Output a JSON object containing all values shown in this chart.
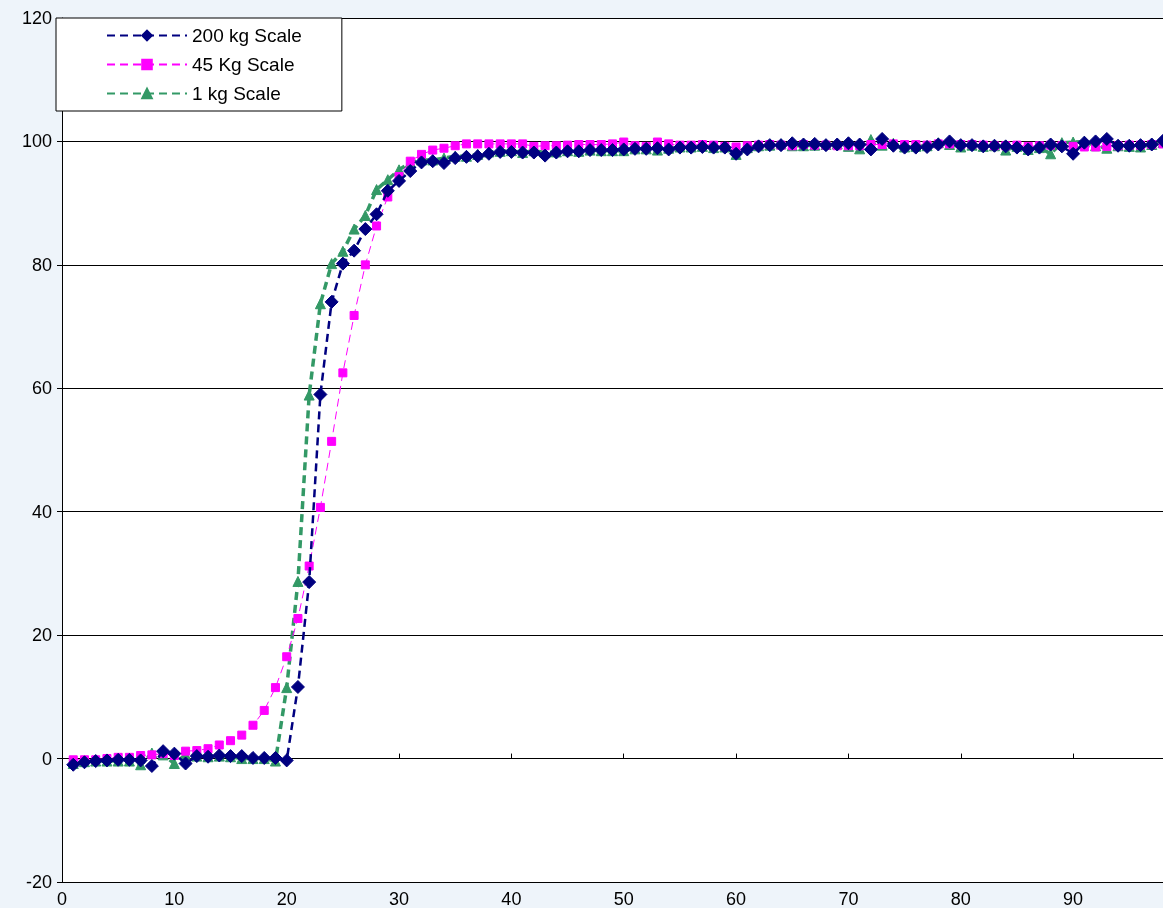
{
  "chart_data": {
    "type": "line",
    "x": [
      1,
      2,
      3,
      4,
      5,
      6,
      7,
      8,
      9,
      10,
      11,
      12,
      13,
      14,
      15,
      16,
      17,
      18,
      19,
      20,
      21,
      22,
      23,
      24,
      25,
      26,
      27,
      28,
      29,
      30,
      31,
      32,
      33,
      34,
      35,
      36,
      37,
      38,
      39,
      40,
      41,
      42,
      43,
      44,
      45,
      46,
      47,
      48,
      49,
      50,
      51,
      52,
      53,
      54,
      55,
      56,
      57,
      58,
      59,
      60,
      61,
      62,
      63,
      64,
      65,
      66,
      67,
      68,
      69,
      70,
      71,
      72,
      73,
      74,
      75,
      76,
      77,
      78,
      79,
      80,
      81,
      82,
      83,
      84,
      85,
      86,
      87,
      88,
      89,
      90,
      91,
      92,
      93,
      94,
      95,
      96,
      97,
      98
    ],
    "series": [
      {
        "name": "200 kg Scale",
        "color": "#000080",
        "marker": "diamond",
        "line_style": "dashed",
        "values": [
          -1,
          -0.6,
          -0.4,
          -0.3,
          -0.2,
          -0.2,
          -0.3,
          -1.2,
          1.2,
          0.8,
          -0.8,
          0.4,
          0.3,
          0.5,
          0.4,
          0.4,
          0.1,
          0.1,
          0.1,
          -0.3,
          11.6,
          28.6,
          59,
          74,
          80.2,
          82.3,
          85.8,
          88.2,
          92,
          93.6,
          95.2,
          96.6,
          96.8,
          96.5,
          97.3,
          97.5,
          97.6,
          98,
          98.3,
          98.3,
          98.2,
          98.2,
          97.7,
          98.2,
          98.4,
          98.4,
          98.6,
          98.6,
          98.6,
          98.7,
          98.8,
          98.8,
          98.9,
          98.7,
          99,
          99,
          99.1,
          99,
          99,
          98,
          98.7,
          99.2,
          99.4,
          99.4,
          99.7,
          99.5,
          99.6,
          99.4,
          99.5,
          99.7,
          99.5,
          98.7,
          100.4,
          99.3,
          99,
          99,
          99.1,
          99.5,
          100,
          99.4,
          99.4,
          99.2,
          99.3,
          99.2,
          99,
          98.7,
          99,
          99.5,
          99.2,
          98,
          99.8,
          100,
          100.4,
          99.3,
          99.3,
          99.4,
          99.5,
          100.1
        ]
      },
      {
        "name": "45 Kg Scale",
        "color": "#ff00ff",
        "marker": "square",
        "line_style": "dashed",
        "values": [
          -0.2,
          -0.2,
          -0.2,
          0,
          0.2,
          0.2,
          0.5,
          0.6,
          0.8,
          0.5,
          1.2,
          1.3,
          1.6,
          2.2,
          2.9,
          3.8,
          5.4,
          7.8,
          11.5,
          16.5,
          22.7,
          31.2,
          40.7,
          51.4,
          62.5,
          71.8,
          80,
          86.3,
          91,
          94.3,
          96.8,
          97.9,
          98.6,
          98.9,
          99.3,
          99.6,
          99.6,
          99.6,
          99.6,
          99.6,
          99.6,
          99.2,
          99.3,
          99.3,
          99.4,
          99.5,
          99.5,
          99.5,
          99.6,
          99.9,
          99.3,
          99.2,
          99.9,
          99.6,
          99.4,
          99.4,
          99.5,
          99.4,
          99.2,
          99.1,
          99.3,
          99.4,
          99.5,
          99.4,
          99.3,
          99.5,
          99.4,
          99.4,
          99.3,
          99.3,
          99.3,
          99.5,
          99.5,
          99.6,
          99.5,
          99.5,
          99.4,
          99.6,
          99.6,
          99.5,
          99.5,
          99.4,
          99.3,
          99.3,
          99.4,
          99.2,
          99.3,
          99.4,
          99.3,
          99.2,
          99.1,
          99.1,
          99.2,
          99.3,
          99.4,
          99.4,
          99.5,
          99.6
        ]
      },
      {
        "name": "1 kg Scale",
        "color": "#339966",
        "marker": "triangle",
        "line_style": "dashed",
        "values": [
          -0.8,
          -0.5,
          -0.4,
          -0.4,
          -0.4,
          -0.4,
          -1,
          0.9,
          0.6,
          -0.8,
          0.6,
          0.4,
          0.3,
          0.4,
          0.3,
          0,
          0,
          0,
          -0.4,
          11.5,
          28.7,
          58.9,
          73.7,
          80.2,
          82.2,
          85.8,
          88,
          92.2,
          93.8,
          95.4,
          96.6,
          97,
          97,
          97.3,
          97.6,
          97.6,
          97.9,
          98.3,
          98.4,
          98.5,
          98.2,
          98.5,
          98.2,
          98.3,
          98.5,
          98.4,
          98.6,
          98.5,
          98.5,
          98.5,
          98.8,
          98.8,
          98.6,
          98.9,
          99.1,
          99.1,
          99.2,
          99,
          99.1,
          97.9,
          99,
          99.3,
          99.4,
          99.6,
          99.3,
          99.3,
          99.4,
          99.5,
          99.6,
          99.2,
          98.8,
          100.3,
          99.4,
          99.7,
          99.1,
          99.2,
          99.3,
          99.8,
          99.5,
          99.1,
          99.4,
          99.2,
          99.3,
          98.6,
          99.2,
          98.7,
          99,
          98,
          99.8,
          99.9,
          100,
          99.3,
          98.9,
          99.3,
          99.2,
          99.1,
          99.5,
          99.8
        ]
      }
    ],
    "xlim": [
      0,
      98
    ],
    "xticks": [
      0,
      10,
      20,
      30,
      40,
      50,
      60,
      70,
      80,
      90
    ],
    "ylim": [
      -20,
      120
    ],
    "yticks": [
      -20,
      0,
      20,
      40,
      60,
      80,
      100,
      120
    ],
    "grid": "y",
    "legend": "top left"
  }
}
